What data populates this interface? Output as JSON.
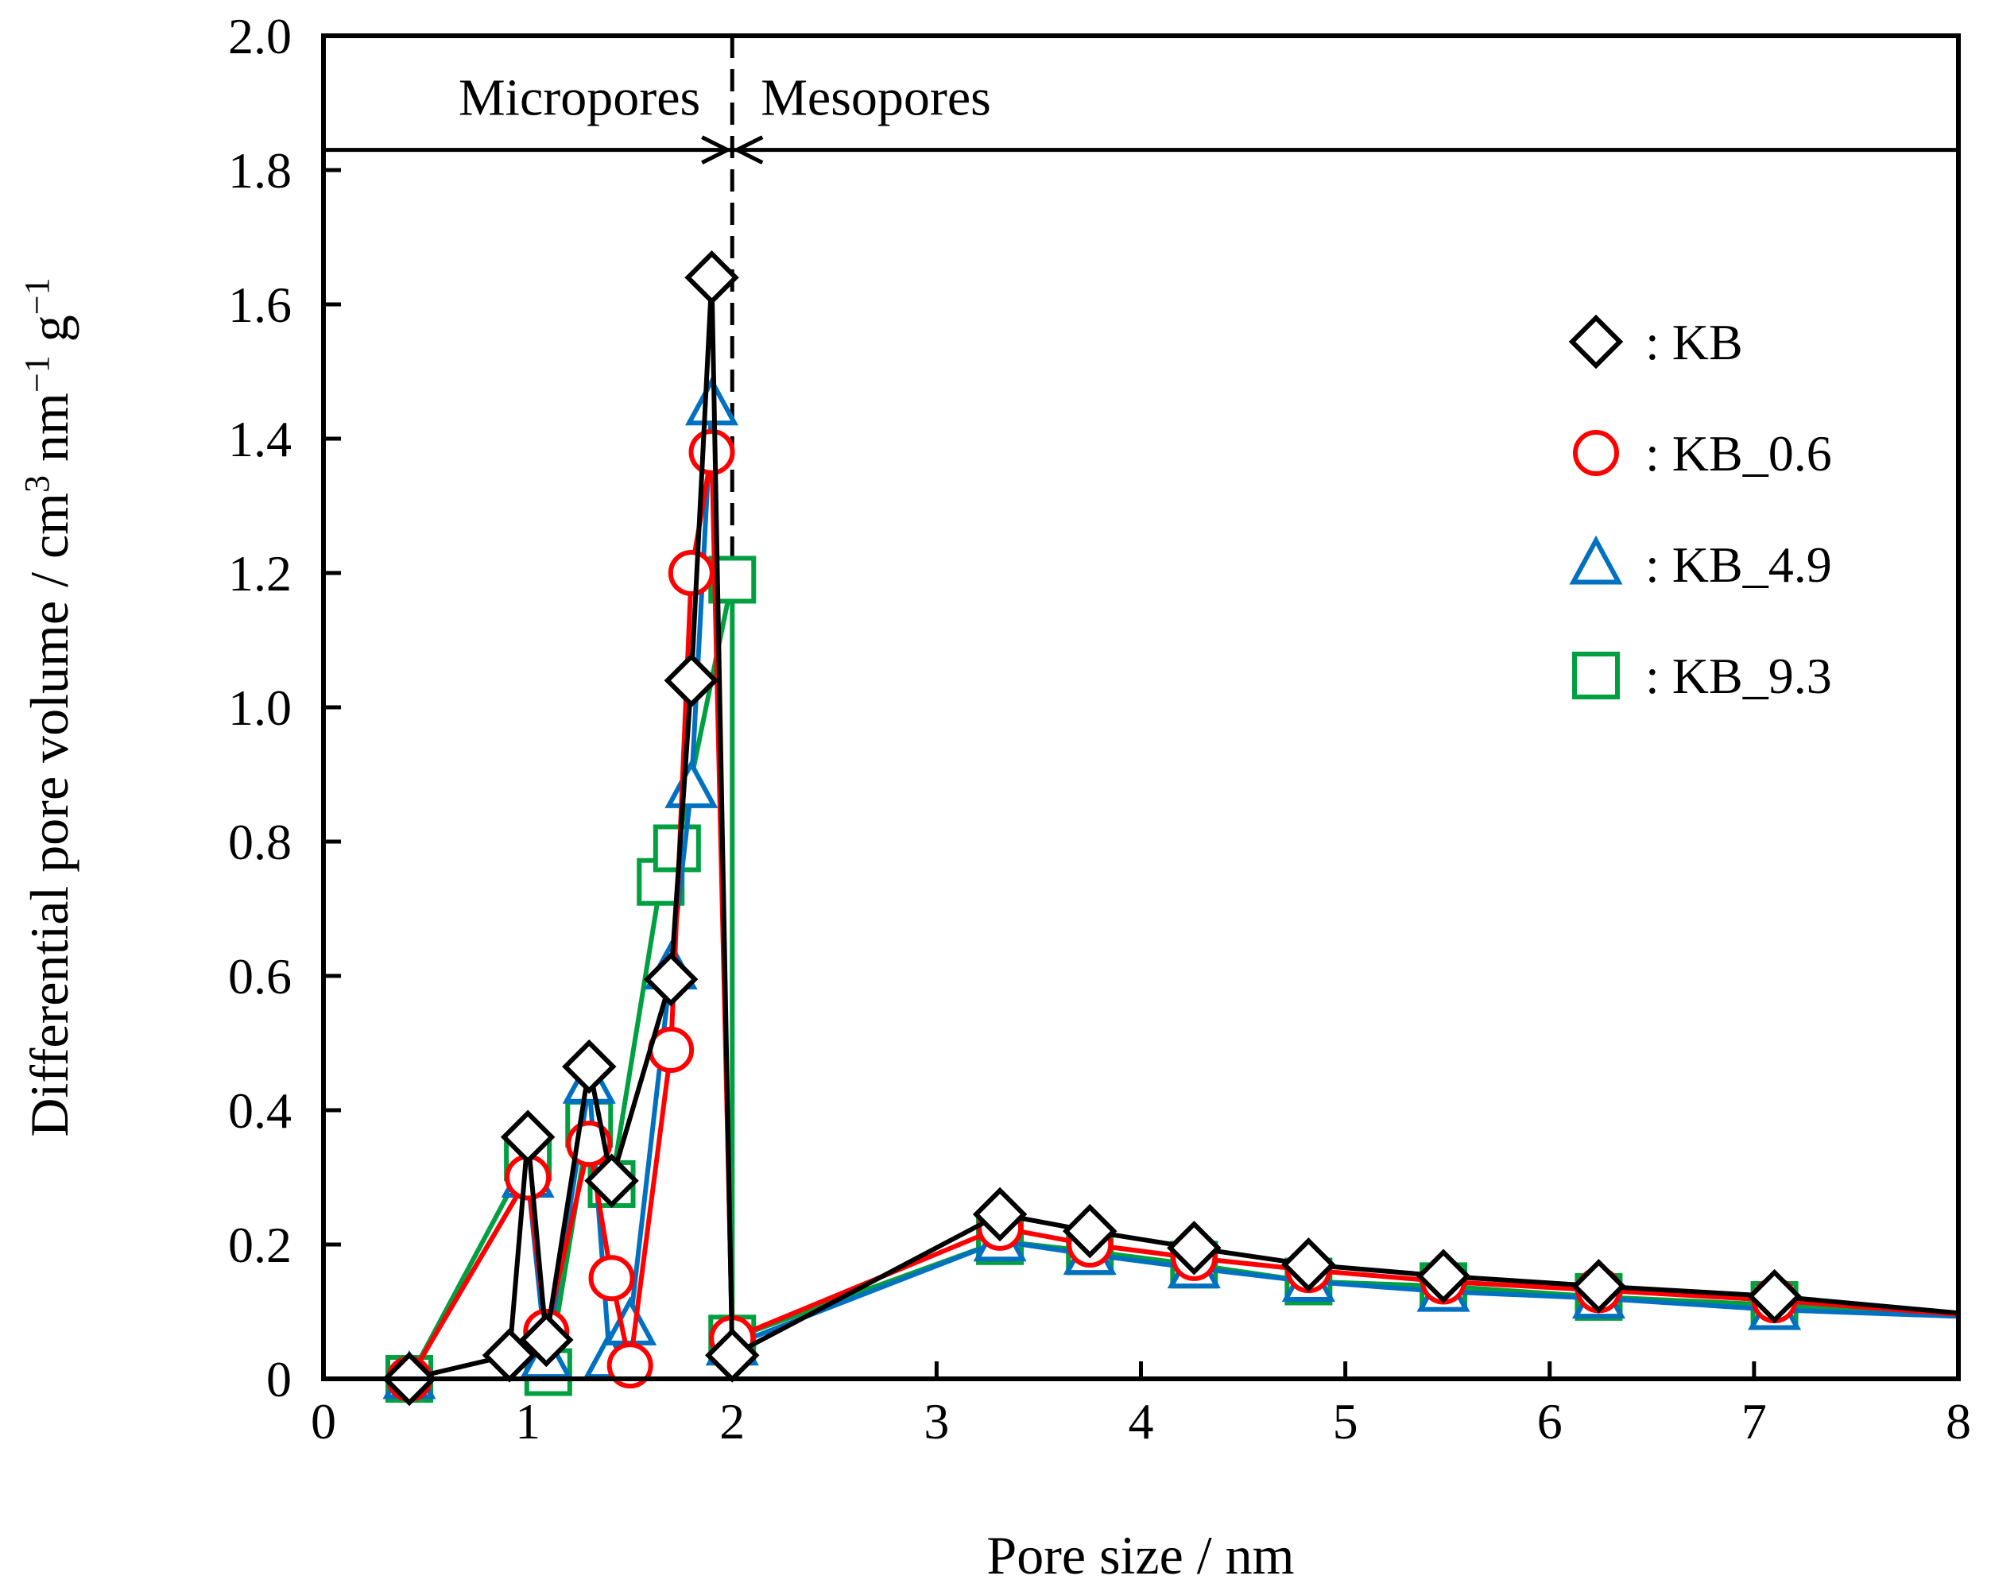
{
  "chart_data": {
    "type": "line",
    "title": "",
    "xlabel": "Pore size / nm",
    "ylabel": "Differential pore volume / cm",
    "ylabel_units": [
      {
        "base": "3",
        "sup": true
      },
      {
        "base": " nm",
        "sup": false
      },
      {
        "base": "−1",
        "sup": true
      },
      {
        "base": " g",
        "sup": false
      },
      {
        "base": "−1",
        "sup": true
      }
    ],
    "xlim": [
      0,
      8
    ],
    "ylim": [
      0,
      2.0
    ],
    "xticks": [
      "0",
      "1",
      "2",
      "3",
      "4",
      "5",
      "6",
      "7",
      "8"
    ],
    "yticks": [
      "0",
      "0.2",
      "0.4",
      "0.6",
      "0.8",
      "1.0",
      "1.2",
      "1.4",
      "1.6",
      "1.8",
      "2.0"
    ],
    "regions": [
      {
        "label": "Micropores",
        "x_range": [
          0,
          2
        ]
      },
      {
        "label": "Mesopores",
        "x_range": [
          2,
          8
        ]
      }
    ],
    "boundary_x": 2,
    "region_band_y": 1.83,
    "legend_position": "top-right",
    "series": [
      {
        "name": ": KB",
        "marker": "diamond",
        "color": "#000000",
        "points": [
          [
            0.42,
            0.0
          ],
          [
            0.91,
            0.035
          ],
          [
            1.0,
            0.36
          ],
          [
            1.09,
            0.058
          ],
          [
            1.3,
            0.465
          ],
          [
            1.41,
            0.295
          ],
          [
            1.7,
            0.595
          ],
          [
            1.8,
            1.04
          ],
          [
            1.9,
            1.64
          ],
          [
            2.0,
            0.035
          ],
          [
            3.31,
            0.245
          ],
          [
            3.75,
            0.22
          ],
          [
            4.26,
            0.195
          ],
          [
            4.82,
            0.17
          ],
          [
            5.48,
            0.153
          ],
          [
            6.24,
            0.138
          ],
          [
            7.1,
            0.123
          ],
          [
            8.0,
            0.098
          ]
        ]
      },
      {
        "name": ": KB_0.6",
        "marker": "circle",
        "color": "#ff0000",
        "points": [
          [
            0.42,
            0.0
          ],
          [
            1.0,
            0.3
          ],
          [
            1.09,
            0.07
          ],
          [
            1.3,
            0.35
          ],
          [
            1.41,
            0.15
          ],
          [
            1.5,
            0.02
          ],
          [
            1.7,
            0.49
          ],
          [
            1.8,
            1.2
          ],
          [
            1.9,
            1.38
          ],
          [
            2.0,
            0.06
          ],
          [
            3.31,
            0.225
          ],
          [
            3.75,
            0.2
          ],
          [
            4.26,
            0.18
          ],
          [
            4.82,
            0.162
          ],
          [
            5.48,
            0.145
          ],
          [
            6.24,
            0.132
          ],
          [
            7.1,
            0.117
          ],
          [
            8.0,
            0.096
          ]
        ]
      },
      {
        "name": ": KB_4.9",
        "marker": "triangle",
        "color": "#0070c0",
        "points": [
          [
            0.42,
            0.0
          ],
          [
            1.0,
            0.3
          ],
          [
            1.09,
            0.03
          ],
          [
            1.3,
            0.44
          ],
          [
            1.4,
            0.03
          ],
          [
            1.5,
            0.08
          ],
          [
            1.7,
            0.61
          ],
          [
            1.8,
            0.88
          ],
          [
            1.9,
            1.45
          ],
          [
            2.0,
            0.05
          ],
          [
            3.31,
            0.205
          ],
          [
            3.75,
            0.185
          ],
          [
            4.26,
            0.165
          ],
          [
            4.82,
            0.145
          ],
          [
            5.48,
            0.13
          ],
          [
            6.24,
            0.12
          ],
          [
            7.1,
            0.103
          ],
          [
            8.0,
            0.093
          ]
        ]
      },
      {
        "name": ": KB_9.3",
        "marker": "square",
        "color": "#00a040",
        "points": [
          [
            0.42,
            0.0
          ],
          [
            1.0,
            0.33
          ],
          [
            1.1,
            0.01
          ],
          [
            1.3,
            0.38
          ],
          [
            1.41,
            0.29
          ],
          [
            1.65,
            0.74
          ],
          [
            1.73,
            0.79
          ],
          [
            2.0,
            1.19
          ],
          [
            2.0,
            0.06
          ],
          [
            3.31,
            0.205
          ],
          [
            3.75,
            0.19
          ],
          [
            4.26,
            0.17
          ],
          [
            4.82,
            0.145
          ],
          [
            5.48,
            0.138
          ],
          [
            6.24,
            0.122
          ],
          [
            7.1,
            0.11
          ],
          [
            8.0,
            0.094
          ]
        ]
      }
    ]
  }
}
